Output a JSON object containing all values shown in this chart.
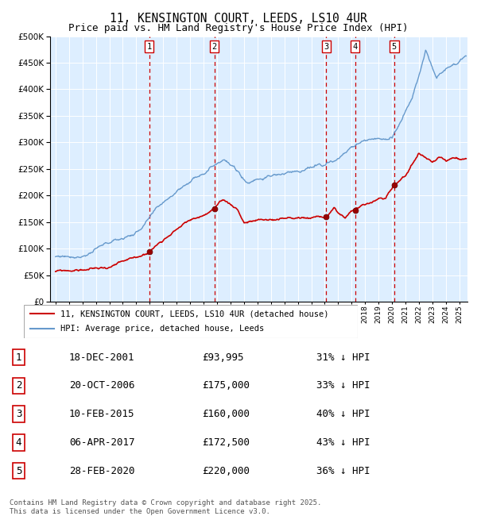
{
  "title": "11, KENSINGTON COURT, LEEDS, LS10 4UR",
  "subtitle": "Price paid vs. HM Land Registry's House Price Index (HPI)",
  "title_fontsize": 10.5,
  "subtitle_fontsize": 9,
  "legend_label_red": "11, KENSINGTON COURT, LEEDS, LS10 4UR (detached house)",
  "legend_label_blue": "HPI: Average price, detached house, Leeds",
  "footnote": "Contains HM Land Registry data © Crown copyright and database right 2025.\nThis data is licensed under the Open Government Licence v3.0.",
  "transactions": [
    {
      "num": 1,
      "date": "18-DEC-2001",
      "price": 93995,
      "pct": "31%",
      "year_x": 2001.96
    },
    {
      "num": 2,
      "date": "20-OCT-2006",
      "price": 175000,
      "pct": "33%",
      "year_x": 2006.8
    },
    {
      "num": 3,
      "date": "10-FEB-2015",
      "price": 160000,
      "pct": "40%",
      "year_x": 2015.11
    },
    {
      "num": 4,
      "date": "06-APR-2017",
      "price": 172500,
      "pct": "43%",
      "year_x": 2017.26
    },
    {
      "num": 5,
      "date": "28-FEB-2020",
      "price": 220000,
      "pct": "36%",
      "year_x": 2020.16
    }
  ],
  "ylim": [
    0,
    500000
  ],
  "xlim_start": 1994.6,
  "xlim_end": 2025.6,
  "hpi_color": "#6699cc",
  "price_color": "#cc0000",
  "bg_color": "#ddeeff",
  "grid_color": "#ffffff",
  "vline_color": "#cc0000",
  "table_rows": [
    [
      "1",
      "18-DEC-2001",
      "£93,995",
      "31% ↓ HPI"
    ],
    [
      "2",
      "20-OCT-2006",
      "£175,000",
      "33% ↓ HPI"
    ],
    [
      "3",
      "10-FEB-2015",
      "£160,000",
      "40% ↓ HPI"
    ],
    [
      "4",
      "06-APR-2017",
      "£172,500",
      "43% ↓ HPI"
    ],
    [
      "5",
      "28-FEB-2020",
      "£220,000",
      "36% ↓ HPI"
    ]
  ]
}
